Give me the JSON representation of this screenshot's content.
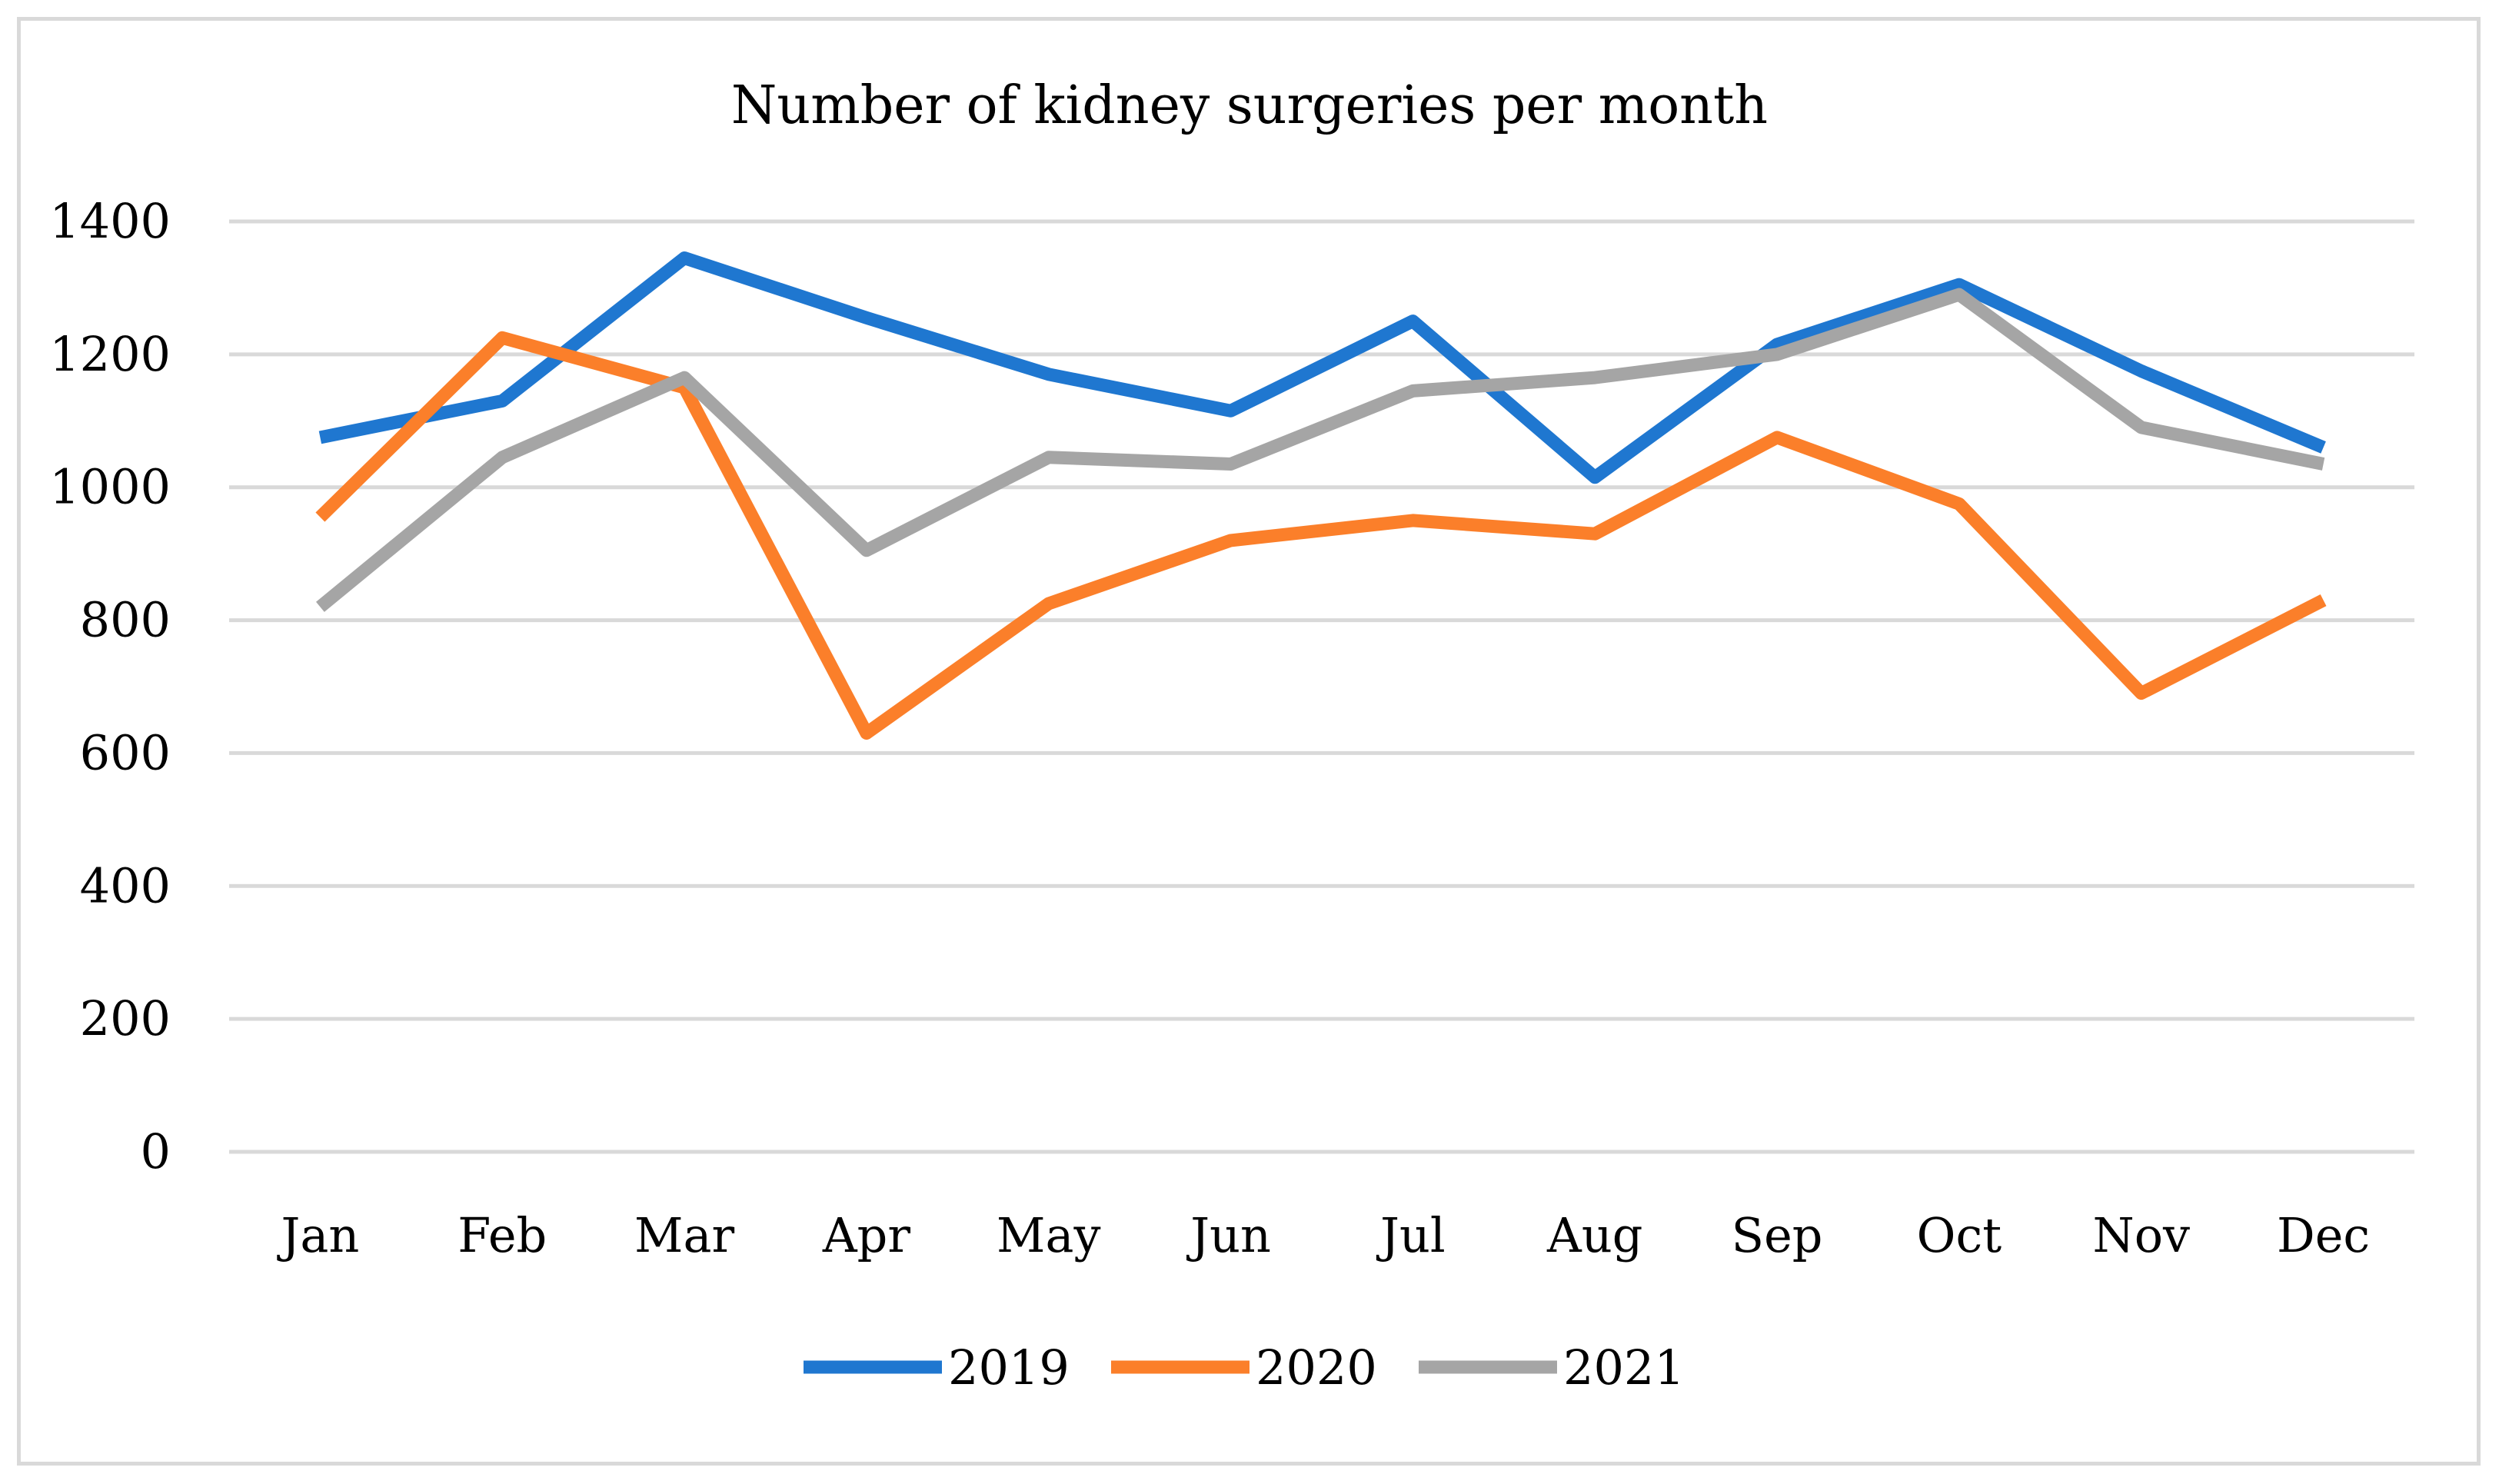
{
  "chart_data": {
    "type": "line",
    "title": "Number of kidney surgeries per month",
    "xlabel": "",
    "ylabel": "",
    "categories": [
      "Jan",
      "Feb",
      "Mar",
      "Apr",
      "May",
      "Jun",
      "Jul",
      "Aug",
      "Sep",
      "Oct",
      "Nov",
      "Dec"
    ],
    "ylim": [
      0,
      1400
    ],
    "yticks": [
      0,
      200,
      400,
      600,
      800,
      1000,
      1200,
      1400
    ],
    "grid": true,
    "legend_position": "bottom",
    "series": [
      {
        "name": "2019",
        "color": "#1f77d0",
        "values": [
          1075,
          1130,
          1345,
          1255,
          1170,
          1115,
          1250,
          1015,
          1215,
          1305,
          1175,
          1060
        ]
      },
      {
        "name": "2020",
        "color": "#fb7f2a",
        "values": [
          955,
          1225,
          1150,
          630,
          825,
          920,
          950,
          930,
          1075,
          975,
          690,
          830
        ]
      },
      {
        "name": "2021",
        "color": "#a5a5a5",
        "values": [
          820,
          1045,
          1165,
          905,
          1045,
          1035,
          1145,
          1165,
          1200,
          1290,
          1090,
          1035
        ]
      }
    ]
  }
}
